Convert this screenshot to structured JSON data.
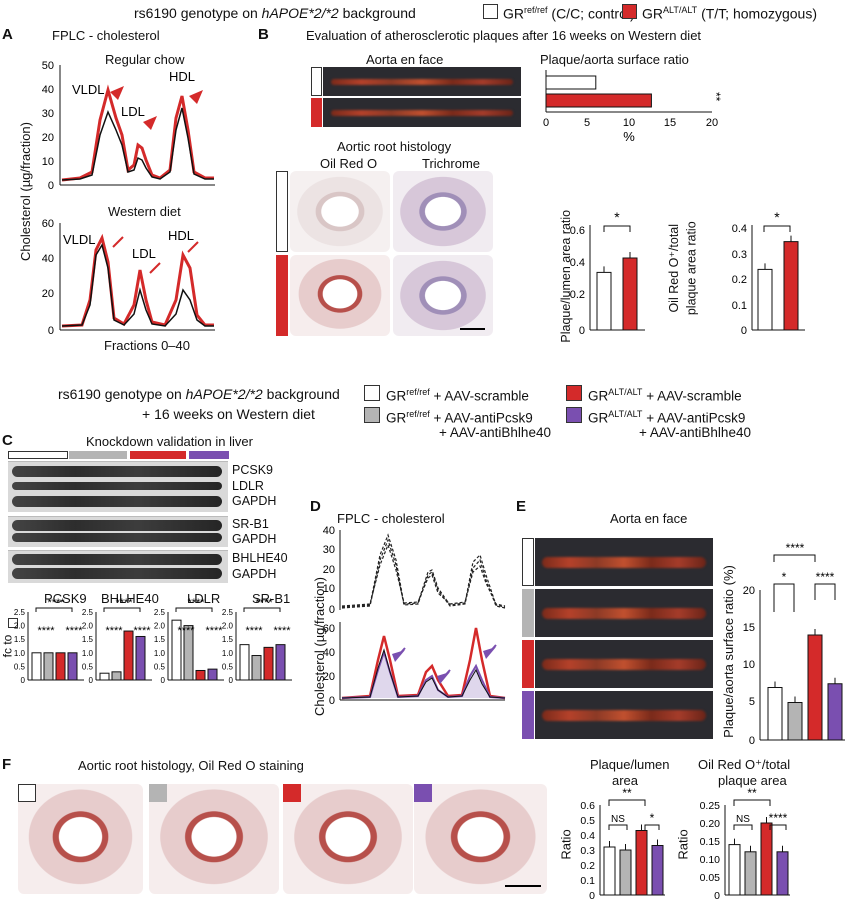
{
  "colors": {
    "control": "#ffffff",
    "alt": "#d42a2a",
    "gray": "#b4b4b4",
    "purple": "#7a4fb0",
    "black": "#111111"
  },
  "header_top": {
    "prefix": "rs6190 genotype on ",
    "italic": "hAPOE*2/*2",
    "suffix": " background",
    "legend_ctrl": "GR",
    "legend_ctrl_sup": "ref/ref",
    "legend_ctrl_tail": " (C/C; control)",
    "legend_alt": "GR",
    "legend_alt_sup": "ALT/ALT",
    "legend_alt_tail": " (T/T; homozygous)"
  },
  "panelA": {
    "letter": "A",
    "title": "FPLC - cholesterol",
    "sub1": "Regular chow",
    "sub2": "Western diet",
    "ylabel": "Cholesterol (µg/fraction)",
    "xlabel": "Fractions 0–40",
    "yticks1": [
      "50",
      "40",
      "30",
      "20",
      "10",
      "0"
    ],
    "yticks2": [
      "60",
      "40",
      "20",
      "0"
    ],
    "labels1": [
      "VLDL",
      "LDL",
      "HDL"
    ],
    "labels2": [
      "VLDL",
      "LDL",
      "HDL"
    ]
  },
  "panelB": {
    "letter": "B",
    "title": "Evaluation of atherosclerotic plaques after 16 weeks on Western diet",
    "enface": "Aorta en face",
    "ratio_title": "Plaque/aorta surface ratio",
    "ratio_xticks": [
      "0",
      "5",
      "10",
      "15",
      "20"
    ],
    "ratio_xlabel": "%",
    "ratio_sig": "**",
    "histo_title": "Aortic root histology",
    "oro": "Oil Red O",
    "tri": "Trichrome",
    "bar1_ylabel": "Plaque/lumen area ratio",
    "bar1_yticks": [
      "0.6",
      "0.4",
      "0.2",
      "0"
    ],
    "bar1_sig": "*",
    "bar2_ylabel1": "Oil Red O⁺/total",
    "bar2_ylabel2": "plaque area ratio",
    "bar2_yticks": [
      "0.4",
      "0.3",
      "0.2",
      "0.1",
      "0"
    ],
    "bar2_sig": "*"
  },
  "header_mid": {
    "line1_prefix": "rs6190 genotype on ",
    "line1_italic": "hAPOE*2/*2",
    "line1_suffix": " background",
    "line2": "+      16 weeks on Western diet",
    "leg1": "GR",
    "leg1_sup": "ref/ref",
    "leg1_tail": " + AAV-scramble",
    "leg2": "GR",
    "leg2_sup": "ref/ref",
    "leg2_tail": " + AAV-antiPcsk9",
    "leg2_line2": "+ AAV-antiBhlhe40",
    "leg3": "GR",
    "leg3_sup": "ALT/ALT",
    "leg3_tail": " + AAV-scramble",
    "leg4": "GR",
    "leg4_sup": "ALT/ALT",
    "leg4_tail": " + AAV-antiPcsk9",
    "leg4_line2": "+ AAV-antiBhlhe40"
  },
  "panelC": {
    "letter": "C",
    "title": "Knockdown validation in liver",
    "blots": [
      "PCSK9",
      "LDLR",
      "GAPDH",
      "SR-B1",
      "GAPDH",
      "BHLHE40",
      "GAPDH"
    ],
    "ylabel": "fc to",
    "yticks": [
      "2.5",
      "2.0",
      "1.5",
      "1.0",
      "0.5",
      "0"
    ],
    "genes": [
      "PCSK9",
      "BHLHE40",
      "LDLR",
      "SR-B1"
    ],
    "sig": "****"
  },
  "panelD": {
    "letter": "D",
    "title": "FPLC - cholesterol",
    "ylabel": "Cholesterol (µg/fraction)",
    "yticks1": [
      "40",
      "30",
      "20",
      "10",
      "0"
    ],
    "yticks2": [
      "60",
      "40",
      "20",
      "0"
    ]
  },
  "panelE": {
    "letter": "E",
    "title": "Aorta en face",
    "ylabel": "Plaque/aorta surface ratio (%)",
    "yticks": [
      "20",
      "15",
      "10",
      "5",
      "0"
    ],
    "sigs": [
      "****",
      "*",
      "****"
    ]
  },
  "panelF": {
    "letter": "F",
    "title": "Aortic root histology, Oil Red O staining",
    "bar1_title1": "Plaque/lumen",
    "bar1_title2": "area",
    "bar1_yticks": [
      "0.6",
      "0.5",
      "0.4",
      "0.3",
      "0.2",
      "0.1",
      "0"
    ],
    "bar1_sigs": [
      "**",
      "NS",
      "*"
    ],
    "bar2_title1": "Oil Red O⁺/total",
    "bar2_title2": "plaque area",
    "bar2_yticks": [
      "0.25",
      "0.20",
      "0.15",
      "0.10",
      "0.05",
      "0"
    ],
    "bar2_sigs": [
      "**",
      "NS",
      "****"
    ],
    "ylabel": "Ratio"
  },
  "chart_data": [
    {
      "type": "bar",
      "panel": "B-ratio",
      "categories": [
        "GRref/ref",
        "GRALT/ALT"
      ],
      "values": [
        6.0,
        12.7
      ],
      "xlim": [
        0,
        20
      ],
      "xlabel": "%"
    },
    {
      "type": "bar",
      "panel": "B-plaque-lumen",
      "categories": [
        "GRref/ref",
        "GRALT/ALT"
      ],
      "values": [
        0.36,
        0.45
      ],
      "ylim": [
        0,
        0.6
      ],
      "ylabel": "Plaque/lumen area ratio"
    },
    {
      "type": "bar",
      "panel": "B-oilredO",
      "categories": [
        "GRref/ref",
        "GRALT/ALT"
      ],
      "values": [
        0.24,
        0.35
      ],
      "ylim": [
        0,
        0.4
      ]
    },
    {
      "type": "bar",
      "panel": "C",
      "categories": [
        "PCSK9",
        "BHLHE40",
        "LDLR",
        "SR-B1"
      ],
      "series": [
        {
          "values": [
            1.0,
            0.25,
            2.2,
            1.3
          ]
        },
        {
          "values": [
            1.0,
            0.3,
            2.0,
            0.9
          ]
        },
        {
          "values": [
            1.0,
            1.8,
            0.35,
            1.2
          ]
        },
        {
          "values": [
            1.0,
            1.6,
            0.4,
            1.3
          ]
        }
      ],
      "ylim": [
        0,
        2.5
      ],
      "ylabel": "fc to"
    },
    {
      "type": "bar",
      "panel": "E",
      "categories": [
        "GRref/ref scramble",
        "GRref/ref anti",
        "GRALT/ALT scramble",
        "GRALT/ALT anti"
      ],
      "values": [
        7.0,
        5.0,
        14.0,
        7.5
      ],
      "ylim": [
        0,
        20
      ],
      "ylabel": "Plaque/aorta surface ratio (%)"
    },
    {
      "type": "bar",
      "panel": "F-plaque-lumen",
      "categories": [
        "1",
        "2",
        "3",
        "4"
      ],
      "values": [
        0.32,
        0.3,
        0.43,
        0.33
      ],
      "ylim": [
        0,
        0.6
      ],
      "ylabel": "Ratio"
    },
    {
      "type": "bar",
      "panel": "F-oilredO",
      "categories": [
        "1",
        "2",
        "3",
        "4"
      ],
      "values": [
        0.14,
        0.12,
        0.2,
        0.12
      ],
      "ylim": [
        0,
        0.25
      ],
      "ylabel": "Ratio"
    }
  ]
}
